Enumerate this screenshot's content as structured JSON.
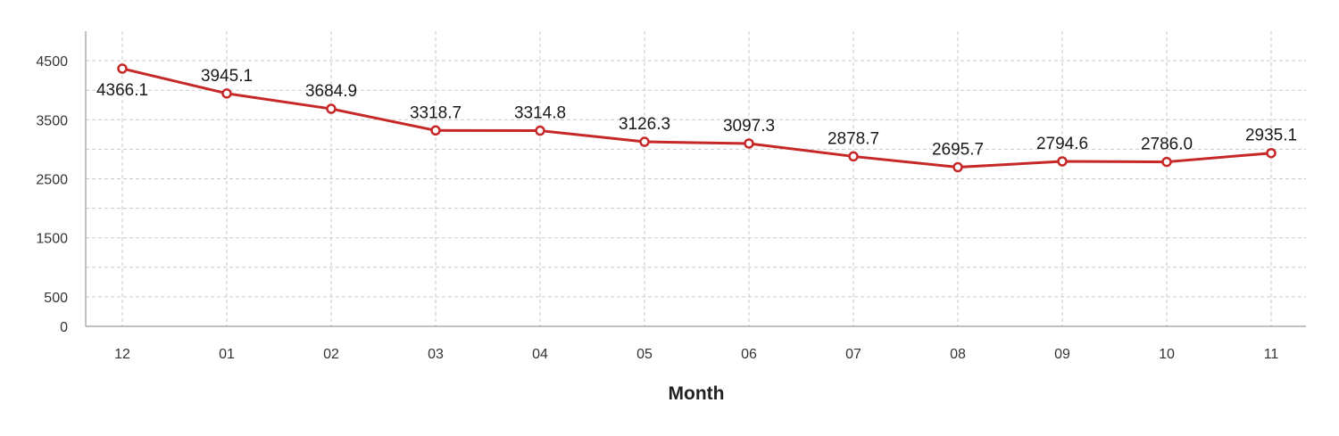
{
  "chart_data": {
    "type": "line",
    "title": "",
    "xlabel": "Month",
    "ylabel": "",
    "categories": [
      "12",
      "01",
      "02",
      "03",
      "04",
      "05",
      "06",
      "07",
      "08",
      "09",
      "10",
      "11"
    ],
    "values": [
      4366.1,
      3945.1,
      3684.9,
      3318.7,
      3314.8,
      3126.3,
      3097.3,
      2878.7,
      2695.7,
      2794.6,
      2786.0,
      2935.1
    ],
    "data_labels": [
      "4366.1",
      "3945.1",
      "3684.9",
      "3318.7",
      "3314.8",
      "3126.3",
      "3097.3",
      "2878.7",
      "2695.7",
      "2794.6",
      "2786.0",
      "2935.1"
    ],
    "ylim": [
      0,
      5000
    ],
    "yticks": [
      0,
      500,
      1500,
      2500,
      3500,
      4500
    ],
    "ytick_labels": [
      "0",
      "500",
      "1500",
      "2500",
      "3500",
      "4500"
    ],
    "grid": true,
    "legend": "none",
    "line_color": "#c62828"
  }
}
